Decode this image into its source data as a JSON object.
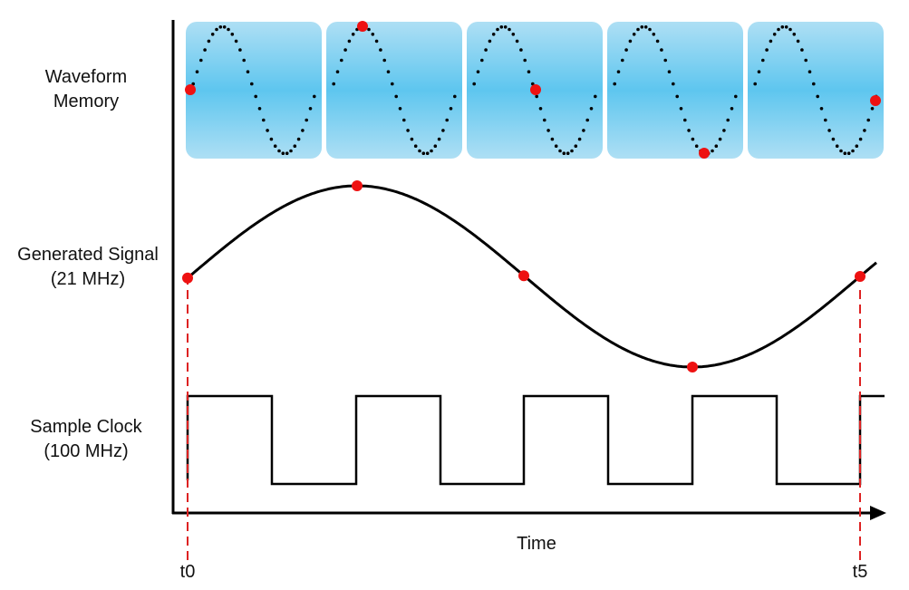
{
  "labels": {
    "waveform_memory": [
      "Waveform",
      "Memory"
    ],
    "generated_signal": [
      "Generated Signal",
      "(21 MHz)"
    ],
    "sample_clock": [
      "Sample Clock",
      "(100 MHz)"
    ],
    "time_axis": "Time",
    "t_start": "t0",
    "t_end": "t5"
  },
  "signal": {
    "generated_frequency_mhz": 21,
    "sample_clock_mhz": 100,
    "memory_segments": 5,
    "samples_shown": 5
  },
  "colors": {
    "line": "#000000",
    "sample_dot": "#ee1111",
    "marker_dash": "#dd2222",
    "memory_edge": "#a8dcf3",
    "memory_mid": "#5ec6ef"
  }
}
